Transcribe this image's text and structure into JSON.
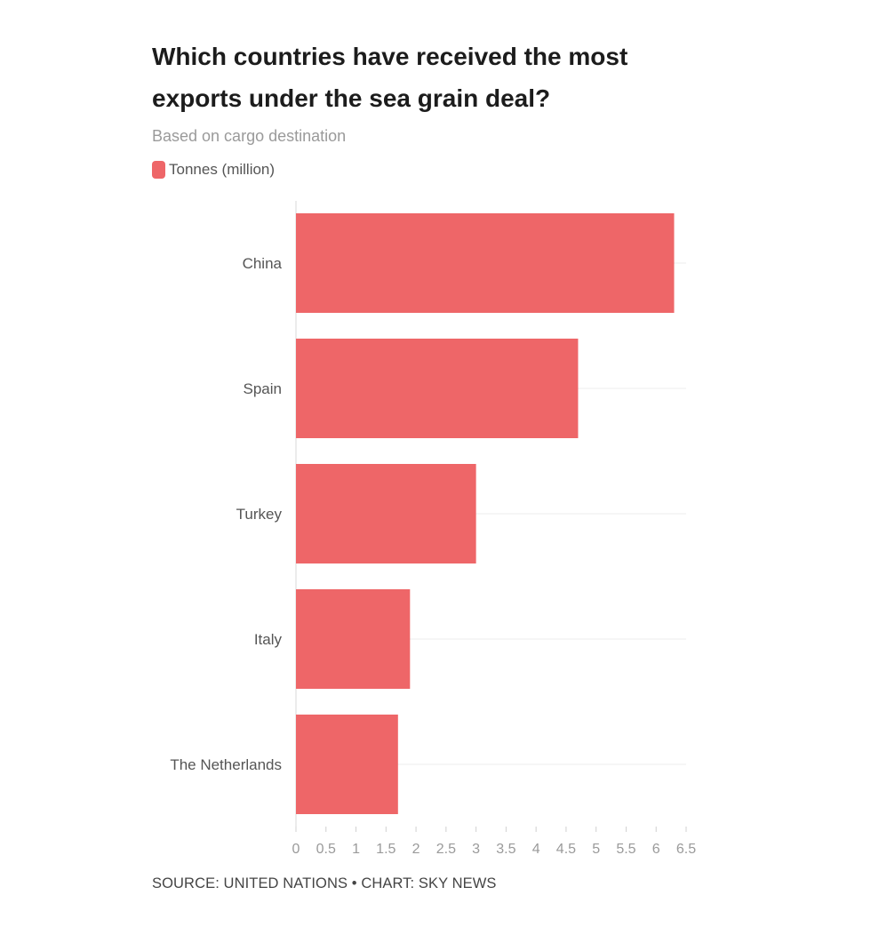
{
  "chart_data": {
    "type": "bar",
    "orientation": "horizontal",
    "title": "Which countries have received the most exports under the sea grain deal?",
    "subtitle": "Based on cargo destination",
    "categories": [
      "China",
      "Spain",
      "Turkey",
      "Italy",
      "The Netherlands"
    ],
    "series": [
      {
        "name": "Tonnes (million)",
        "values": [
          6.3,
          4.7,
          3.0,
          1.9,
          1.7
        ]
      }
    ],
    "xlim": [
      0,
      6.5
    ],
    "xticks": [
      "0",
      "0.5",
      "1",
      "1.5",
      "2",
      "2.5",
      "3",
      "3.5",
      "4",
      "4.5",
      "5",
      "5.5",
      "6",
      "6.5"
    ],
    "xlabel": "",
    "ylabel": "",
    "grid": true,
    "legend_position": "top-left",
    "bar_color": "#ee6668",
    "source": "SOURCE: UNITED NATIONS • CHART: SKY NEWS"
  }
}
